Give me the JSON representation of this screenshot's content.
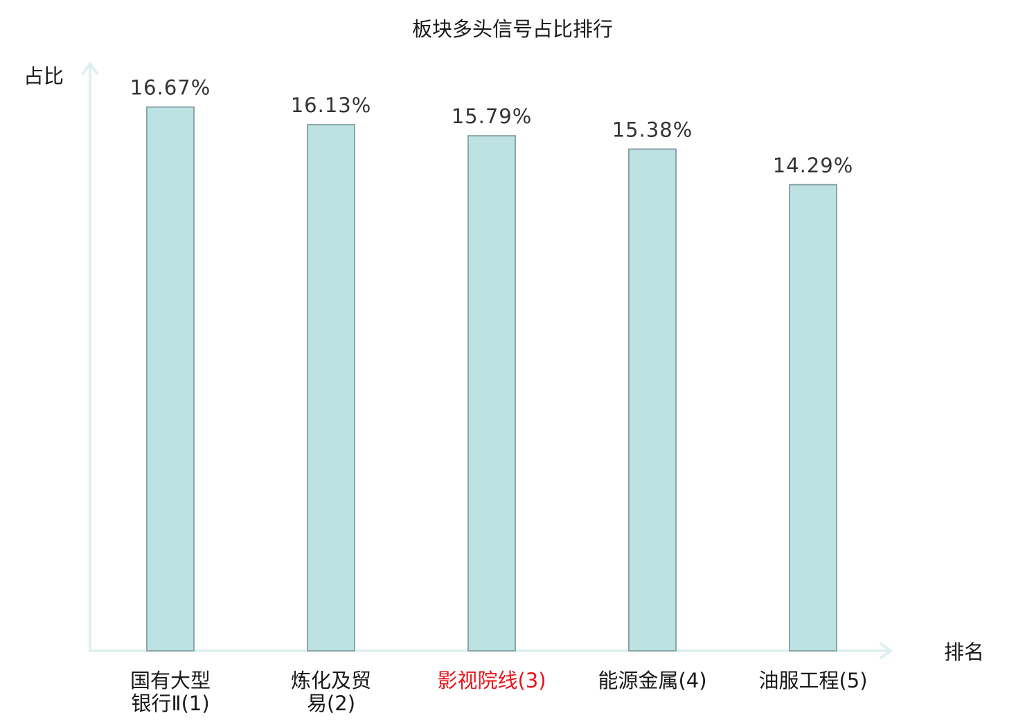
{
  "chart_data": {
    "type": "bar",
    "title": "板块多头信号占比排行",
    "ylabel": "占比",
    "xlabel": "排名",
    "categories": [
      "国有大型银行Ⅱ(1)",
      "炼化及贸易(2)",
      "影视院线(3)",
      "能源金属(4)",
      "油服工程(5)"
    ],
    "category_lines": [
      [
        "国有大型",
        "银行Ⅱ(1)"
      ],
      [
        "炼化及贸",
        "易(2)"
      ],
      [
        "影视院线(3)"
      ],
      [
        "能源金属(4)"
      ],
      [
        "油服工程(5)"
      ]
    ],
    "values": [
      16.67,
      16.13,
      15.79,
      15.38,
      14.29
    ],
    "value_labels": [
      "16.67%",
      "16.13%",
      "15.79%",
      "15.38%",
      "14.29%"
    ],
    "highlight_index": 2,
    "ylim": [
      0,
      18
    ],
    "grid": false,
    "legend": "none"
  },
  "colors": {
    "bar_fill": "#bde2e4",
    "bar_stroke": "#8aa5a8",
    "axis": "#dff1ef",
    "highlight_label": "#e8141a",
    "text": "#1a1a1a",
    "value_text": "#333333"
  }
}
